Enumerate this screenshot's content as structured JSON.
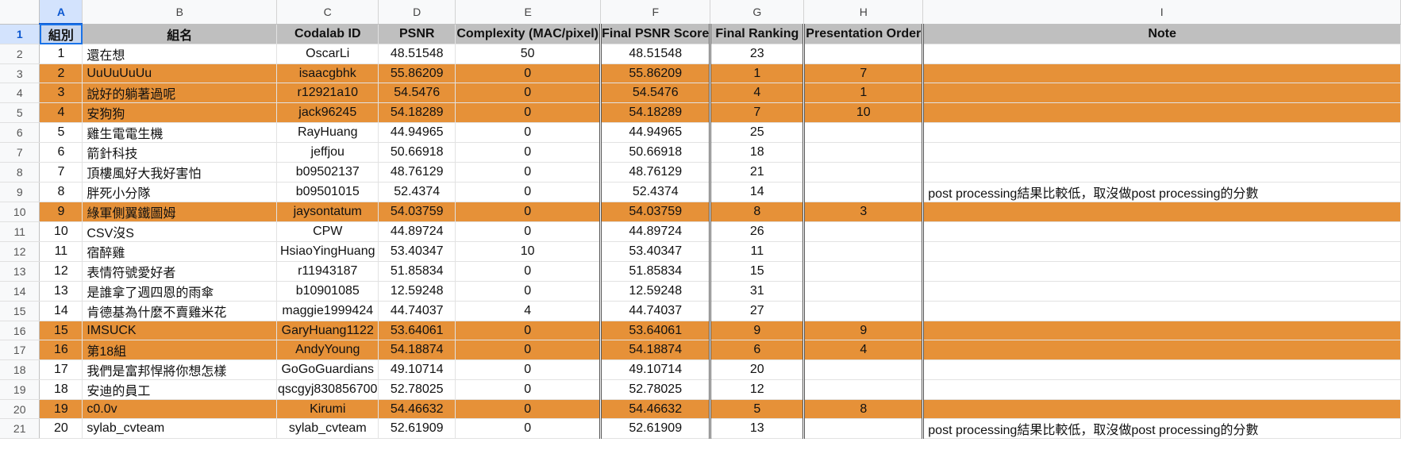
{
  "column_letters": [
    "A",
    "B",
    "C",
    "D",
    "E",
    "F",
    "G",
    "H",
    "I"
  ],
  "header_row": [
    "組別",
    "組名",
    "Codalab ID",
    "PSNR",
    "Complexity (MAC/pixel)",
    "Final PSNR Score",
    "Final Ranking",
    "Presentation Order",
    "Note"
  ],
  "rows": [
    {
      "n": "2",
      "cells": [
        "1",
        "還在想",
        "OscarLi",
        "48.51548",
        "50",
        "48.51548",
        "23",
        "",
        ""
      ],
      "hl": false
    },
    {
      "n": "3",
      "cells": [
        "2",
        "UuUuUuUu",
        "isaacgbhk",
        "55.86209",
        "0",
        "55.86209",
        "1",
        "7",
        ""
      ],
      "hl": true
    },
    {
      "n": "4",
      "cells": [
        "3",
        "說好的躺著過呢",
        "r12921a10",
        "54.5476",
        "0",
        "54.5476",
        "4",
        "1",
        ""
      ],
      "hl": true
    },
    {
      "n": "5",
      "cells": [
        "4",
        "安狗狗",
        "jack96245",
        "54.18289",
        "0",
        "54.18289",
        "7",
        "10",
        ""
      ],
      "hl": true
    },
    {
      "n": "6",
      "cells": [
        "5",
        "雞生電電生機",
        "RayHuang",
        "44.94965",
        "0",
        "44.94965",
        "25",
        "",
        ""
      ],
      "hl": false
    },
    {
      "n": "7",
      "cells": [
        "6",
        "箭針科技",
        "jeffjou",
        "50.66918",
        "0",
        "50.66918",
        "18",
        "",
        ""
      ],
      "hl": false
    },
    {
      "n": "8",
      "cells": [
        "7",
        "頂樓風好大我好害怕",
        "b09502137",
        "48.76129",
        "0",
        "48.76129",
        "21",
        "",
        ""
      ],
      "hl": false
    },
    {
      "n": "9",
      "cells": [
        "8",
        "胖死小分隊",
        "b09501015",
        "52.4374",
        "0",
        "52.4374",
        "14",
        "",
        "post processing結果比較低，取沒做post processing的分數"
      ],
      "hl": false
    },
    {
      "n": "10",
      "cells": [
        "9",
        "綠軍側翼鐵圖姆",
        "jaysontatum",
        "54.03759",
        "0",
        "54.03759",
        "8",
        "3",
        ""
      ],
      "hl": true
    },
    {
      "n": "11",
      "cells": [
        "10",
        "CSV沒S",
        "CPW",
        "44.89724",
        "0",
        "44.89724",
        "26",
        "",
        ""
      ],
      "hl": false
    },
    {
      "n": "12",
      "cells": [
        "11",
        "宿醉雞",
        "HsiaoYingHuang",
        "53.40347",
        "10",
        "53.40347",
        "11",
        "",
        ""
      ],
      "hl": false
    },
    {
      "n": "13",
      "cells": [
        "12",
        "表情符號愛好者",
        "r11943187",
        "51.85834",
        "0",
        "51.85834",
        "15",
        "",
        ""
      ],
      "hl": false
    },
    {
      "n": "14",
      "cells": [
        "13",
        "是誰拿了週四恩的雨傘",
        "b10901085",
        "12.59248",
        "0",
        "12.59248",
        "31",
        "",
        ""
      ],
      "hl": false
    },
    {
      "n": "15",
      "cells": [
        "14",
        "肯德基為什麼不賣雞米花",
        "maggie1999424",
        "44.74037",
        "4",
        "44.74037",
        "27",
        "",
        ""
      ],
      "hl": false
    },
    {
      "n": "16",
      "cells": [
        "15",
        "IMSUCK",
        "GaryHuang1122",
        "53.64061",
        "0",
        "53.64061",
        "9",
        "9",
        ""
      ],
      "hl": true
    },
    {
      "n": "17",
      "cells": [
        "16",
        "第18組",
        "AndyYoung",
        "54.18874",
        "0",
        "54.18874",
        "6",
        "4",
        ""
      ],
      "hl": true
    },
    {
      "n": "18",
      "cells": [
        "17",
        "我們是富邦悍將你想怎樣",
        "GoGoGuardians",
        "49.10714",
        "0",
        "49.10714",
        "20",
        "",
        ""
      ],
      "hl": false
    },
    {
      "n": "19",
      "cells": [
        "18",
        "安迪的員工",
        "qscgyj830856700",
        "52.78025",
        "0",
        "52.78025",
        "12",
        "",
        ""
      ],
      "hl": false
    },
    {
      "n": "20",
      "cells": [
        "19",
        "c0.0v",
        "Kirumi",
        "54.46632",
        "0",
        "54.46632",
        "5",
        "8",
        ""
      ],
      "hl": true
    },
    {
      "n": "21",
      "cells": [
        "20",
        "sylab_cvteam",
        "sylab_cvteam",
        "52.61909",
        "0",
        "52.61909",
        "13",
        "",
        "post processing結果比較低，取沒做post processing的分數"
      ],
      "hl": false
    }
  ],
  "colors": {
    "highlight": "#e69138",
    "header_bg": "#bfbfbf",
    "selection": "#1a73e8"
  }
}
